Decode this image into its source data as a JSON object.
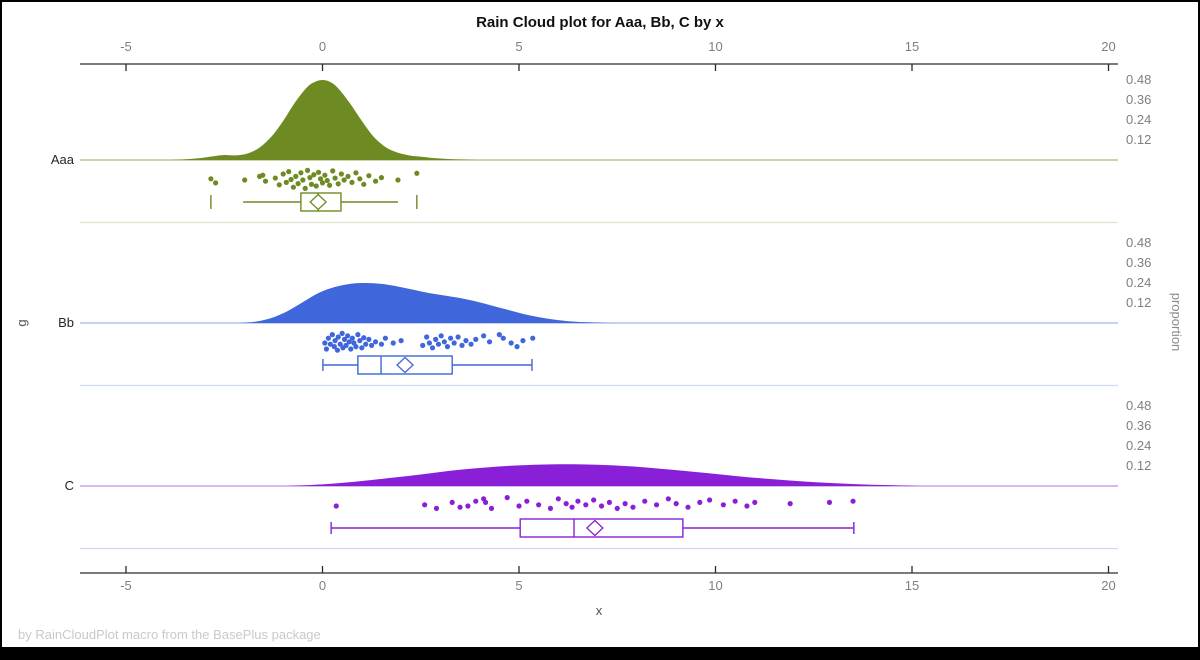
{
  "title": "Rain Cloud plot for Aaa, Bb, C by x",
  "footer": "by RainCloudPlot macro from the BasePlus package",
  "chart_data": {
    "type": "raincloud",
    "title": "Rain Cloud plot for Aaa, Bb, C by x",
    "xlabel": "x",
    "left_axis_label": "g",
    "right_axis_label": "proportion",
    "x_ticks": [
      -5,
      0,
      5,
      10,
      15,
      20
    ],
    "x_range": [
      -6.2,
      20.3
    ],
    "proportion_tick_labels": [
      "0.48",
      "0.36",
      "0.24",
      "0.12"
    ],
    "proportion_per_tick": 0.12,
    "grid": false,
    "legend": "none",
    "colors": {
      "axis": "#2b2b2b",
      "tick_label": "#7f7f7f",
      "category_label": "#262626",
      "footer": "#c9c9c9"
    },
    "groups": [
      {
        "name": "Aaa",
        "color": "#6d8b22",
        "baseline_color": "#b9c78f",
        "separator_color": "#dfe5ce",
        "density": [
          [
            -3.9,
            0
          ],
          [
            -3.5,
            0.004
          ],
          [
            -3.1,
            0.012
          ],
          [
            -2.8,
            0.022
          ],
          [
            -2.5,
            0.03
          ],
          [
            -2.2,
            0.028
          ],
          [
            -1.9,
            0.04
          ],
          [
            -1.6,
            0.075
          ],
          [
            -1.3,
            0.14
          ],
          [
            -1.0,
            0.235
          ],
          [
            -0.7,
            0.345
          ],
          [
            -0.4,
            0.435
          ],
          [
            -0.2,
            0.468
          ],
          [
            0,
            0.48
          ],
          [
            0.2,
            0.468
          ],
          [
            0.4,
            0.43
          ],
          [
            0.7,
            0.34
          ],
          [
            1.0,
            0.235
          ],
          [
            1.3,
            0.14
          ],
          [
            1.6,
            0.078
          ],
          [
            1.9,
            0.045
          ],
          [
            2.2,
            0.028
          ],
          [
            2.5,
            0.02
          ],
          [
            2.8,
            0.012
          ],
          [
            3.2,
            0.006
          ],
          [
            3.6,
            0.002
          ],
          [
            3.9,
            0
          ]
        ],
        "points": [
          [
            -2.84,
            0.45
          ],
          [
            -2.72,
            0.62
          ],
          [
            -1.98,
            0.5
          ],
          [
            -1.6,
            0.35
          ],
          [
            -1.52,
            0.3
          ],
          [
            -1.45,
            0.55
          ],
          [
            -1.2,
            0.42
          ],
          [
            -1.1,
            0.7
          ],
          [
            -1.0,
            0.25
          ],
          [
            -0.92,
            0.6
          ],
          [
            -0.86,
            0.15
          ],
          [
            -0.8,
            0.48
          ],
          [
            -0.74,
            0.8
          ],
          [
            -0.68,
            0.35
          ],
          [
            -0.62,
            0.65
          ],
          [
            -0.55,
            0.2
          ],
          [
            -0.5,
            0.5
          ],
          [
            -0.44,
            0.85
          ],
          [
            -0.38,
            0.1
          ],
          [
            -0.32,
            0.4
          ],
          [
            -0.28,
            0.68
          ],
          [
            -0.22,
            0.28
          ],
          [
            -0.16,
            0.75
          ],
          [
            -0.1,
            0.18
          ],
          [
            -0.05,
            0.45
          ],
          [
            0.0,
            0.62
          ],
          [
            0.06,
            0.3
          ],
          [
            0.12,
            0.52
          ],
          [
            0.18,
            0.72
          ],
          [
            0.26,
            0.12
          ],
          [
            0.32,
            0.42
          ],
          [
            0.4,
            0.66
          ],
          [
            0.48,
            0.25
          ],
          [
            0.55,
            0.5
          ],
          [
            0.65,
            0.35
          ],
          [
            0.75,
            0.6
          ],
          [
            0.85,
            0.2
          ],
          [
            0.95,
            0.45
          ],
          [
            1.05,
            0.68
          ],
          [
            1.18,
            0.32
          ],
          [
            1.35,
            0.55
          ],
          [
            1.5,
            0.4
          ],
          [
            1.92,
            0.5
          ],
          [
            2.4,
            0.22
          ]
        ],
        "box": {
          "q1": -0.55,
          "q3": 0.47,
          "median": -0.11,
          "mean": -0.11,
          "whisker_low": -2.02,
          "whisker_high": 1.92,
          "whisker_caps": false,
          "outliers": [
            -2.84,
            2.4
          ]
        }
      },
      {
        "name": "Bb",
        "color": "#3f66db",
        "baseline_color": "#aec4ef",
        "separator_color": "#ccd9f5",
        "density": [
          [
            -2.1,
            0
          ],
          [
            -1.7,
            0.008
          ],
          [
            -1.3,
            0.03
          ],
          [
            -0.9,
            0.07
          ],
          [
            -0.5,
            0.125
          ],
          [
            -0.1,
            0.18
          ],
          [
            0.3,
            0.215
          ],
          [
            0.7,
            0.235
          ],
          [
            1.1,
            0.24
          ],
          [
            1.5,
            0.235
          ],
          [
            1.9,
            0.22
          ],
          [
            2.3,
            0.2
          ],
          [
            2.7,
            0.18
          ],
          [
            3.1,
            0.165
          ],
          [
            3.5,
            0.15
          ],
          [
            3.9,
            0.13
          ],
          [
            4.3,
            0.105
          ],
          [
            4.7,
            0.08
          ],
          [
            5.1,
            0.055
          ],
          [
            5.5,
            0.035
          ],
          [
            5.9,
            0.02
          ],
          [
            6.3,
            0.01
          ],
          [
            6.8,
            0.004
          ],
          [
            7.4,
            0
          ]
        ],
        "points": [
          [
            0.06,
            0.5
          ],
          [
            0.1,
            0.75
          ],
          [
            0.15,
            0.3
          ],
          [
            0.2,
            0.55
          ],
          [
            0.25,
            0.15
          ],
          [
            0.3,
            0.65
          ],
          [
            0.32,
            0.4
          ],
          [
            0.38,
            0.8
          ],
          [
            0.4,
            0.25
          ],
          [
            0.45,
            0.55
          ],
          [
            0.5,
            0.1
          ],
          [
            0.52,
            0.7
          ],
          [
            0.56,
            0.35
          ],
          [
            0.6,
            0.6
          ],
          [
            0.64,
            0.2
          ],
          [
            0.68,
            0.45
          ],
          [
            0.72,
            0.75
          ],
          [
            0.76,
            0.3
          ],
          [
            0.8,
            0.5
          ],
          [
            0.85,
            0.65
          ],
          [
            0.9,
            0.15
          ],
          [
            0.95,
            0.4
          ],
          [
            1.0,
            0.7
          ],
          [
            1.05,
            0.28
          ],
          [
            1.1,
            0.55
          ],
          [
            1.18,
            0.35
          ],
          [
            1.25,
            0.6
          ],
          [
            1.35,
            0.45
          ],
          [
            1.5,
            0.55
          ],
          [
            1.6,
            0.3
          ],
          [
            1.8,
            0.5
          ],
          [
            2.0,
            0.4
          ],
          [
            2.55,
            0.6
          ],
          [
            2.65,
            0.25
          ],
          [
            2.72,
            0.5
          ],
          [
            2.8,
            0.7
          ],
          [
            2.88,
            0.35
          ],
          [
            2.95,
            0.55
          ],
          [
            3.02,
            0.2
          ],
          [
            3.1,
            0.45
          ],
          [
            3.18,
            0.65
          ],
          [
            3.26,
            0.3
          ],
          [
            3.35,
            0.5
          ],
          [
            3.45,
            0.25
          ],
          [
            3.55,
            0.6
          ],
          [
            3.65,
            0.4
          ],
          [
            3.78,
            0.55
          ],
          [
            3.9,
            0.35
          ],
          [
            4.1,
            0.2
          ],
          [
            4.25,
            0.45
          ],
          [
            4.5,
            0.15
          ],
          [
            4.6,
            0.3
          ],
          [
            4.8,
            0.5
          ],
          [
            4.95,
            0.65
          ],
          [
            5.1,
            0.4
          ],
          [
            5.35,
            0.3
          ]
        ],
        "box": {
          "q1": 0.9,
          "q3": 3.3,
          "median": 1.49,
          "mean": 2.1,
          "whisker_low": 0.01,
          "whisker_high": 5.33,
          "whisker_caps": true,
          "outliers": []
        }
      },
      {
        "name": "C",
        "color": "#8a1fd8",
        "baseline_color": "#c9a2ea",
        "separator_color": "#e2d0f3",
        "density": [
          [
            -0.9,
            0
          ],
          [
            -0.3,
            0.006
          ],
          [
            0.3,
            0.015
          ],
          [
            1.0,
            0.03
          ],
          [
            1.8,
            0.05
          ],
          [
            2.6,
            0.072
          ],
          [
            3.4,
            0.095
          ],
          [
            4.2,
            0.112
          ],
          [
            5.0,
            0.124
          ],
          [
            5.8,
            0.13
          ],
          [
            6.6,
            0.13
          ],
          [
            7.4,
            0.124
          ],
          [
            8.2,
            0.112
          ],
          [
            9.0,
            0.095
          ],
          [
            9.8,
            0.077
          ],
          [
            10.6,
            0.058
          ],
          [
            11.4,
            0.042
          ],
          [
            12.2,
            0.028
          ],
          [
            13.0,
            0.017
          ],
          [
            13.8,
            0.009
          ],
          [
            14.6,
            0.004
          ],
          [
            15.2,
            0
          ]
        ],
        "points": [
          [
            0.35,
            0.5
          ],
          [
            2.6,
            0.45
          ],
          [
            2.9,
            0.6
          ],
          [
            3.3,
            0.35
          ],
          [
            3.5,
            0.55
          ],
          [
            3.7,
            0.5
          ],
          [
            3.9,
            0.3
          ],
          [
            4.1,
            0.2
          ],
          [
            4.15,
            0.35
          ],
          [
            4.3,
            0.6
          ],
          [
            4.7,
            0.15
          ],
          [
            5.0,
            0.5
          ],
          [
            5.2,
            0.3
          ],
          [
            5.5,
            0.45
          ],
          [
            5.8,
            0.6
          ],
          [
            6.0,
            0.2
          ],
          [
            6.2,
            0.4
          ],
          [
            6.35,
            0.55
          ],
          [
            6.5,
            0.3
          ],
          [
            6.7,
            0.45
          ],
          [
            6.9,
            0.25
          ],
          [
            7.1,
            0.5
          ],
          [
            7.3,
            0.35
          ],
          [
            7.5,
            0.6
          ],
          [
            7.7,
            0.4
          ],
          [
            7.9,
            0.55
          ],
          [
            8.2,
            0.3
          ],
          [
            8.5,
            0.45
          ],
          [
            8.8,
            0.2
          ],
          [
            9.0,
            0.4
          ],
          [
            9.3,
            0.55
          ],
          [
            9.6,
            0.35
          ],
          [
            9.85,
            0.25
          ],
          [
            10.2,
            0.45
          ],
          [
            10.5,
            0.3
          ],
          [
            10.8,
            0.5
          ],
          [
            11.0,
            0.35
          ],
          [
            11.9,
            0.4
          ],
          [
            12.9,
            0.35
          ],
          [
            13.5,
            0.3
          ]
        ],
        "box": {
          "q1": 5.03,
          "q3": 9.17,
          "median": 6.4,
          "mean": 6.93,
          "whisker_low": 0.22,
          "whisker_high": 13.52,
          "whisker_caps": true,
          "outliers": []
        }
      }
    ]
  }
}
